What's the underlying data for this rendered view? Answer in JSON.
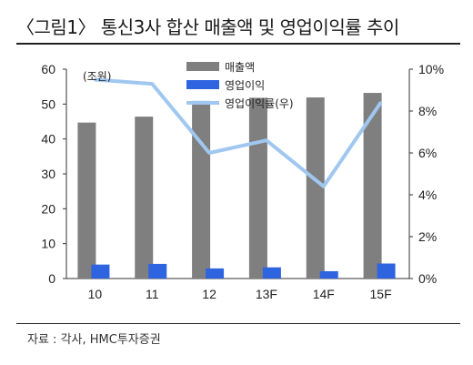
{
  "header": {
    "title": "〈그림1〉 통신3사 합산 매출액 및 영업이익률 추이",
    "source": "자료 : 각사, HMC투자증권"
  },
  "chart_data": {
    "type": "bar",
    "categories": [
      "10",
      "11",
      "12",
      "13F",
      "14F",
      "15F"
    ],
    "unit_label": "(조원)",
    "yleft": {
      "lim": [
        0,
        60
      ],
      "ticks": [
        "0",
        "10",
        "20",
        "30",
        "40",
        "50",
        "60"
      ]
    },
    "yright": {
      "lim": [
        0,
        10
      ],
      "ticks": [
        "0%",
        "2%",
        "4%",
        "6%",
        "8%",
        "10%"
      ]
    },
    "series": [
      {
        "name": "매출액",
        "axis": "left",
        "kind": "bar",
        "color": "#7f7f7f",
        "values": [
          44.7,
          46.4,
          50.9,
          51.8,
          51.9,
          53.2
        ]
      },
      {
        "name": "영업이익",
        "axis": "left",
        "kind": "bar",
        "color": "#2f64e0",
        "values": [
          4.0,
          4.2,
          2.9,
          3.2,
          2.1,
          4.3
        ]
      },
      {
        "name": "영업이익률(우)",
        "axis": "right",
        "kind": "line",
        "color": "#9fc7f0",
        "values": [
          9.5,
          9.3,
          6.0,
          6.6,
          4.4,
          8.4
        ]
      }
    ],
    "legend_position": "top-right",
    "grid": false
  }
}
